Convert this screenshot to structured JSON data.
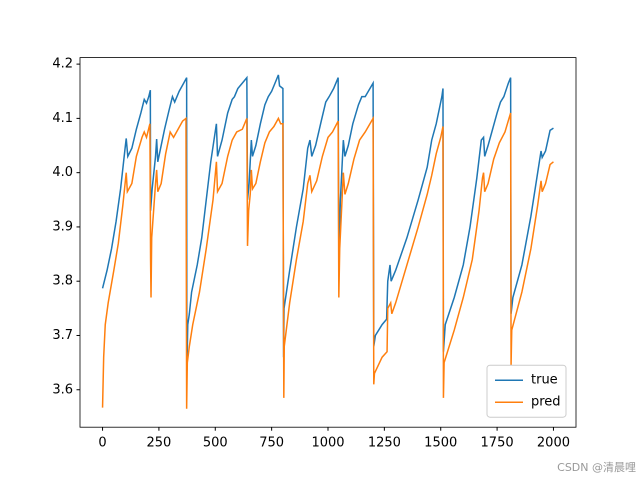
{
  "chart_data": {
    "type": "line",
    "xlim": [
      -100,
      2100
    ],
    "ylim": [
      3.531,
      4.212
    ],
    "xticks": [
      0,
      250,
      500,
      750,
      1000,
      1250,
      1500,
      1750,
      2000
    ],
    "yticks": [
      3.6,
      3.7,
      3.8,
      3.9,
      {
        "value": 4,
        "label": "4.0"
      },
      4.1,
      4.2
    ],
    "grid": false,
    "legend": "lower right",
    "watermark": "CSDN @清晨哩",
    "series": [
      {
        "name": "true",
        "color": "#1f77b4",
        "x": [
          0,
          20,
          40,
          60,
          80,
          100,
          105,
          112,
          130,
          150,
          170,
          185,
          195,
          205,
          212,
          213,
          220,
          235,
          240,
          245,
          255,
          275,
          295,
          310,
          320,
          340,
          360,
          373,
          374,
          378,
          385,
          395,
          420,
          440,
          460,
          480,
          505,
          510,
          530,
          555,
          575,
          585,
          600,
          620,
          640,
          643,
          650,
          660,
          665,
          680,
          700,
          720,
          735,
          750,
          765,
          780,
          785,
          800,
          803,
          805,
          830,
          860,
          890,
          910,
          920,
          928,
          945,
          970,
          990,
          1005,
          1025,
          1045,
          1048,
          1055,
          1068,
          1075,
          1090,
          1110,
          1135,
          1150,
          1165,
          1200,
          1203,
          1210,
          1240,
          1260,
          1265,
          1275,
          1280,
          1300,
          1350,
          1400,
          1440,
          1460,
          1480,
          1495,
          1505,
          1510,
          1512,
          1520,
          1560,
          1600,
          1630,
          1660,
          1680,
          1690,
          1695,
          1710,
          1730,
          1750,
          1765,
          1780,
          1800,
          1810,
          1812,
          1820,
          1860,
          1900,
          1930,
          1945,
          1950,
          1965,
          1985,
          2000
        ],
        "values": [
          3.787,
          3.82,
          3.86,
          3.91,
          3.97,
          4.045,
          4.063,
          4.03,
          4.045,
          4.08,
          4.11,
          4.135,
          4.128,
          4.14,
          4.152,
          3.93,
          3.97,
          4.03,
          4.062,
          4.02,
          4.04,
          4.08,
          4.115,
          4.14,
          4.13,
          4.15,
          4.165,
          4.175,
          3.635,
          3.72,
          3.74,
          3.78,
          3.83,
          3.88,
          3.95,
          4.02,
          4.09,
          4.03,
          4.06,
          4.11,
          4.135,
          4.14,
          4.155,
          4.165,
          4.175,
          3.95,
          3.98,
          4.06,
          4.03,
          4.05,
          4.09,
          4.125,
          4.14,
          4.15,
          4.165,
          4.18,
          4.16,
          4.155,
          3.66,
          3.75,
          3.82,
          3.9,
          3.97,
          4.045,
          4.06,
          4.03,
          4.05,
          4.095,
          4.13,
          4.14,
          4.155,
          4.175,
          3.84,
          3.95,
          4.06,
          4.03,
          4.05,
          4.09,
          4.125,
          4.14,
          4.14,
          4.165,
          3.68,
          3.7,
          3.72,
          3.73,
          3.8,
          3.83,
          3.8,
          3.82,
          3.88,
          3.95,
          4.01,
          4.06,
          4.09,
          4.12,
          4.14,
          4.155,
          3.67,
          3.72,
          3.77,
          3.83,
          3.9,
          3.99,
          4.06,
          4.065,
          4.03,
          4.05,
          4.08,
          4.11,
          4.13,
          4.14,
          4.165,
          4.175,
          3.74,
          3.77,
          3.83,
          3.92,
          4.0,
          4.04,
          4.028,
          4.04,
          4.078,
          4.082
        ]
      },
      {
        "name": "pred",
        "color": "#ff7f0e",
        "x": [
          0,
          5,
          12,
          25,
          50,
          70,
          90,
          105,
          110,
          130,
          150,
          175,
          185,
          195,
          210,
          213,
          215,
          218,
          235,
          240,
          245,
          260,
          280,
          300,
          315,
          335,
          355,
          370,
          373,
          376,
          385,
          400,
          430,
          460,
          490,
          505,
          510,
          530,
          555,
          575,
          595,
          620,
          640,
          643,
          648,
          655,
          660,
          665,
          680,
          700,
          720,
          740,
          760,
          780,
          790,
          800,
          804,
          806,
          830,
          860,
          890,
          910,
          920,
          928,
          950,
          975,
          1000,
          1020,
          1045,
          1048,
          1052,
          1060,
          1068,
          1075,
          1090,
          1115,
          1140,
          1165,
          1200,
          1203,
          1206,
          1240,
          1262,
          1265,
          1278,
          1283,
          1300,
          1350,
          1400,
          1440,
          1460,
          1480,
          1500,
          1510,
          1512,
          1515,
          1560,
          1600,
          1640,
          1670,
          1685,
          1690,
          1695,
          1710,
          1735,
          1760,
          1785,
          1810,
          1812,
          1815,
          1860,
          1900,
          1930,
          1945,
          1950,
          1965,
          1985,
          2000
        ],
        "values": [
          3.567,
          3.66,
          3.72,
          3.76,
          3.82,
          3.87,
          3.94,
          4.0,
          3.965,
          3.98,
          4.03,
          4.065,
          4.075,
          4.065,
          4.09,
          3.84,
          3.77,
          3.88,
          3.98,
          4.005,
          3.965,
          3.98,
          4.035,
          4.075,
          4.065,
          4.08,
          4.095,
          4.1,
          3.565,
          3.65,
          3.68,
          3.72,
          3.78,
          3.86,
          3.95,
          4.02,
          3.965,
          3.98,
          4.03,
          4.06,
          4.075,
          4.08,
          4.1,
          3.865,
          3.93,
          3.96,
          4.005,
          3.97,
          3.98,
          4.02,
          4.055,
          4.075,
          4.085,
          4.1,
          4.09,
          4.09,
          3.585,
          3.68,
          3.76,
          3.84,
          3.91,
          3.98,
          3.995,
          3.965,
          3.985,
          4.03,
          4.065,
          4.075,
          4.095,
          3.77,
          3.86,
          3.93,
          4.0,
          3.96,
          3.98,
          4.025,
          4.06,
          4.075,
          4.1,
          3.61,
          3.63,
          3.66,
          3.67,
          3.75,
          3.76,
          3.74,
          3.76,
          3.83,
          3.9,
          3.96,
          3.995,
          4.035,
          4.065,
          4.085,
          3.585,
          3.65,
          3.71,
          3.77,
          3.84,
          3.93,
          3.99,
          4.0,
          3.965,
          3.98,
          4.025,
          4.055,
          4.075,
          4.11,
          3.645,
          3.71,
          3.78,
          3.86,
          3.94,
          3.985,
          3.965,
          3.98,
          4.015,
          4.02
        ]
      }
    ]
  }
}
